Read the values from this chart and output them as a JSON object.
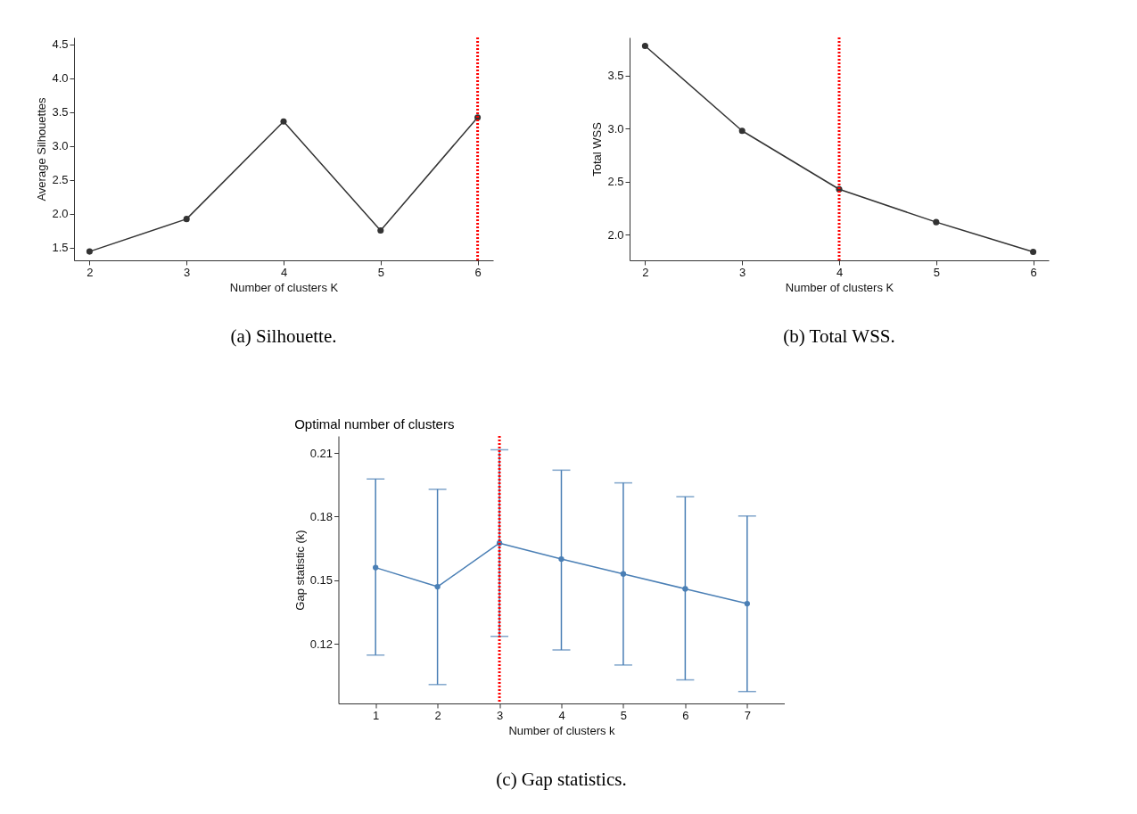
{
  "chart_data": [
    {
      "type": "line",
      "xlabel": "Number of clusters K",
      "ylabel": "Average Silhouettes",
      "x": [
        2,
        3,
        4,
        5,
        6
      ],
      "series": [
        {
          "color": "#333333",
          "values": [
            1.44,
            1.92,
            3.36,
            1.75,
            3.42
          ]
        }
      ],
      "xlim": [
        1.84,
        6.16
      ],
      "xticks": [
        2,
        3,
        4,
        5,
        6
      ],
      "ylim": [
        1.31,
        4.6
      ],
      "yticks": [
        1.5,
        {
          "value": 2,
          "label": "2.0"
        },
        2.5,
        {
          "value": 3,
          "label": "3.0"
        },
        3.5,
        {
          "value": 4,
          "label": "4.0"
        },
        4.5
      ],
      "marker": "circle",
      "grid": false,
      "ref_lines": [
        {
          "axis": "x",
          "value": 6,
          "color": "#ff0000",
          "line_style": "dotted"
        }
      ],
      "annotations": [
        "(a) Silhouette."
      ]
    },
    {
      "type": "line",
      "xlabel": "Number of clusters K",
      "ylabel": "Total WSS",
      "x": [
        2,
        3,
        4,
        5,
        6
      ],
      "series": [
        {
          "color": "#333333",
          "values": [
            3.78,
            2.98,
            2.43,
            2.12,
            1.84
          ]
        }
      ],
      "xlim": [
        1.84,
        6.16
      ],
      "xticks": [
        2,
        3,
        4,
        5,
        6
      ],
      "ylim": [
        1.76,
        3.86
      ],
      "yticks": [
        {
          "value": 2,
          "label": "2.0"
        },
        2.5,
        {
          "value": 3,
          "label": "3.0"
        },
        3.5
      ],
      "marker": "circle",
      "grid": false,
      "ref_lines": [
        {
          "axis": "x",
          "value": 4,
          "color": "#ff0000",
          "line_style": "dotted"
        }
      ],
      "annotations": [
        "(b) Total WSS."
      ]
    },
    {
      "type": "line",
      "title": "Optimal number of clusters",
      "xlabel": "Number of clusters k",
      "ylabel": "Gap statistic (k)",
      "x": [
        1,
        2,
        3,
        4,
        5,
        6,
        7
      ],
      "series": [
        {
          "color": "#4a7fb5",
          "values": [
            0.156,
            0.147,
            0.1675,
            0.16,
            0.153,
            0.146,
            0.139
          ],
          "errors": [
            [
              0.1148,
              0.1977
            ],
            [
              0.1009,
              0.1929
            ],
            [
              0.1236,
              0.2115
            ],
            [
              0.1172,
              0.2019
            ],
            [
              0.1101,
              0.1959
            ],
            [
              0.1031,
              0.1894
            ],
            [
              0.0976,
              0.1803
            ]
          ]
        }
      ],
      "xlim": [
        0.4,
        7.6
      ],
      "xticks": [
        1,
        2,
        3,
        4,
        5,
        6,
        7
      ],
      "ylim": [
        0.092,
        0.218
      ],
      "yticks": [
        0.12,
        0.15,
        0.18,
        0.21
      ],
      "marker": "circle",
      "grid": false,
      "ref_lines": [
        {
          "axis": "x",
          "value": 3,
          "color": "#ff0000",
          "line_style": "dotted"
        }
      ],
      "annotations": [
        "(c) Gap statistics."
      ]
    }
  ]
}
